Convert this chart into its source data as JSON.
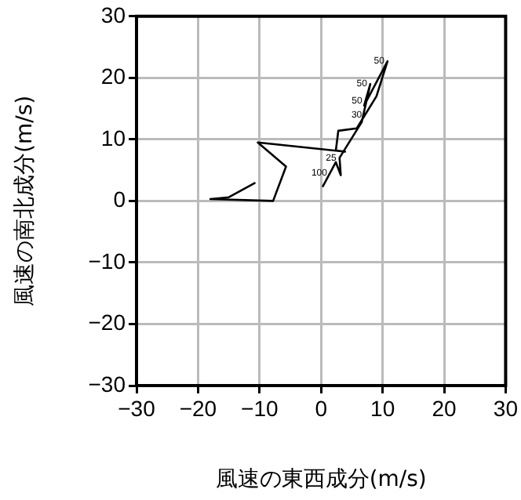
{
  "chart_data": {
    "type": "line",
    "xlabel": "風速の東西成分(m/s)",
    "ylabel": "風速の南北成分(m/s)",
    "x": [
      0.3,
      2.4,
      3.2,
      3.0,
      6.6,
      8,
      7,
      10.8,
      9,
      5.8,
      2.8,
      2.4,
      3.9,
      -10.3,
      -5.7,
      -7.8,
      -18,
      -15,
      -10.8
    ],
    "series": [
      {
        "color": "#000000",
        "values": [
          2.4,
          6.3,
          4.2,
          7.0,
          12.8,
          19,
          15.5,
          22.7,
          17,
          11.8,
          11.4,
          8.2,
          8.0,
          9.5,
          5.6,
          0,
          0.3,
          0.6,
          2.9
        ]
      }
    ],
    "xlim": [
      -30,
      30
    ],
    "ylim": [
      -30,
      30
    ],
    "xticks": [
      {
        "value": -30,
        "label": "−30"
      },
      {
        "value": -20,
        "label": "−20"
      },
      {
        "value": -10,
        "label": "−10"
      },
      0,
      10,
      20,
      30
    ],
    "yticks": [
      {
        "value": -30,
        "label": "−30"
      },
      {
        "value": -20,
        "label": "−20"
      },
      {
        "value": -10,
        "label": "−10"
      },
      0,
      10,
      20,
      30
    ],
    "grid": true,
    "legend": false,
    "marker": "none",
    "line_style": "solid",
    "annotations": [
      {
        "text": "50",
        "x": 8,
        "y": 19
      },
      {
        "text": "50",
        "x": 10.8,
        "y": 22.7
      },
      {
        "text": "50",
        "x": 7.2,
        "y": 16.2
      },
      {
        "text": "30",
        "x": 7.15,
        "y": 14
      },
      {
        "text": "25",
        "x": 3.0,
        "y": 7.0
      },
      {
        "text": "100",
        "x": 1.5,
        "y": 4.6
      }
    ]
  }
}
